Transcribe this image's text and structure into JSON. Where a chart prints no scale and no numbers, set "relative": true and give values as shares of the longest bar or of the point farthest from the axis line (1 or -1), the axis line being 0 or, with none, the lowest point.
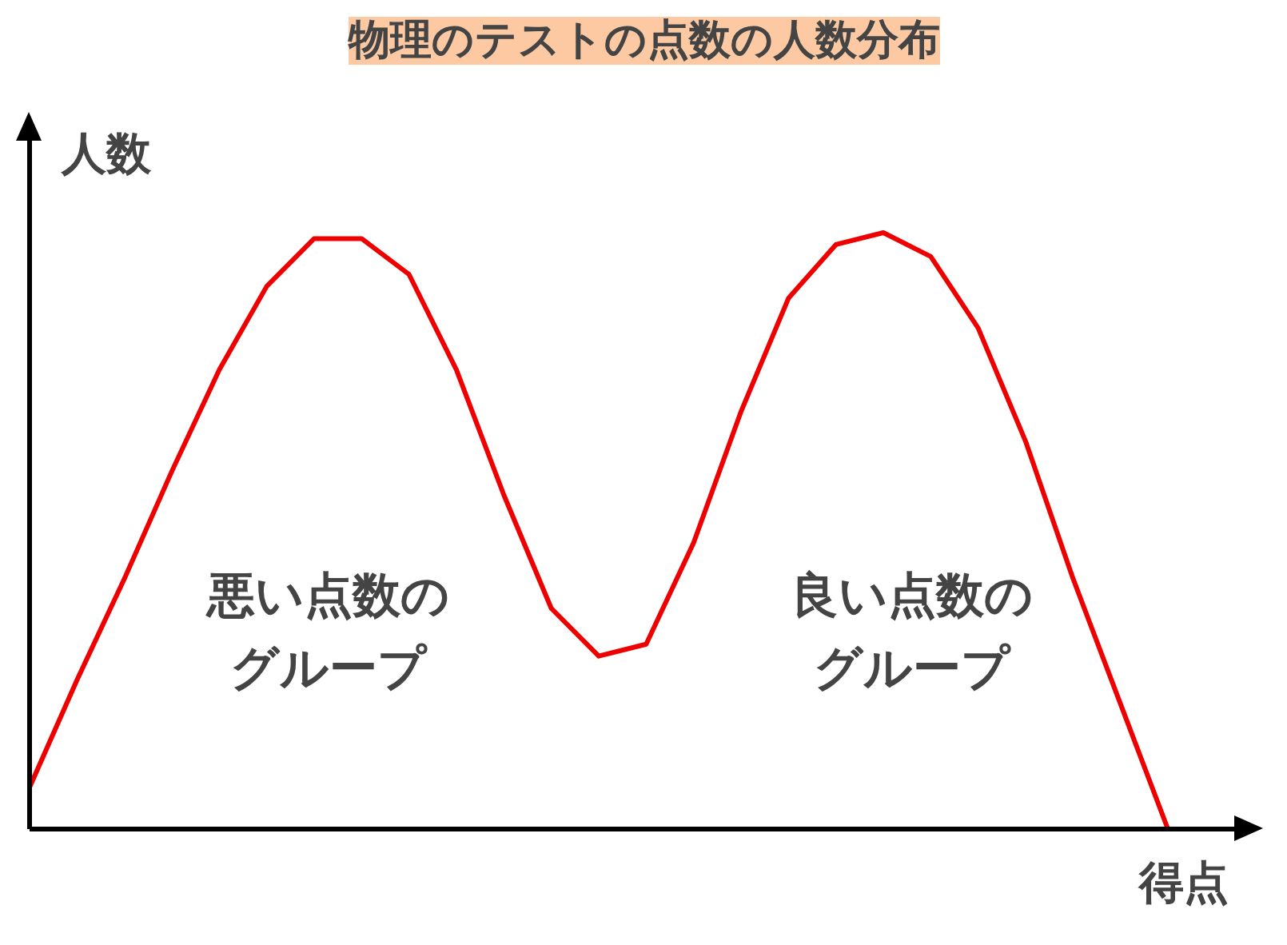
{
  "chart_data": {
    "type": "line",
    "relative": true,
    "title": "物理のテストの点数の人数分布",
    "xlabel": "得点",
    "ylabel": "人数",
    "annotations": [
      "悪い点数のグループ",
      "良い点数のグループ"
    ],
    "categories": [
      null,
      null,
      null,
      null,
      null,
      null,
      null,
      null,
      null,
      null,
      null,
      null,
      null,
      null,
      null,
      null,
      null,
      null,
      null,
      null,
      null,
      null,
      null,
      null,
      null
    ],
    "series": [
      {
        "color": "#ee0000",
        "values": [
          0.07,
          0.25,
          0.42,
          0.6,
          0.77,
          0.91,
          0.99,
          0.99,
          0.93,
          0.77,
          0.56,
          0.37,
          0.29,
          0.31,
          0.48,
          0.7,
          0.89,
          0.98,
          1.0,
          0.96,
          0.84,
          0.65,
          0.42,
          0.21,
          0
        ]
      }
    ],
    "grid": false,
    "marker": "none"
  }
}
